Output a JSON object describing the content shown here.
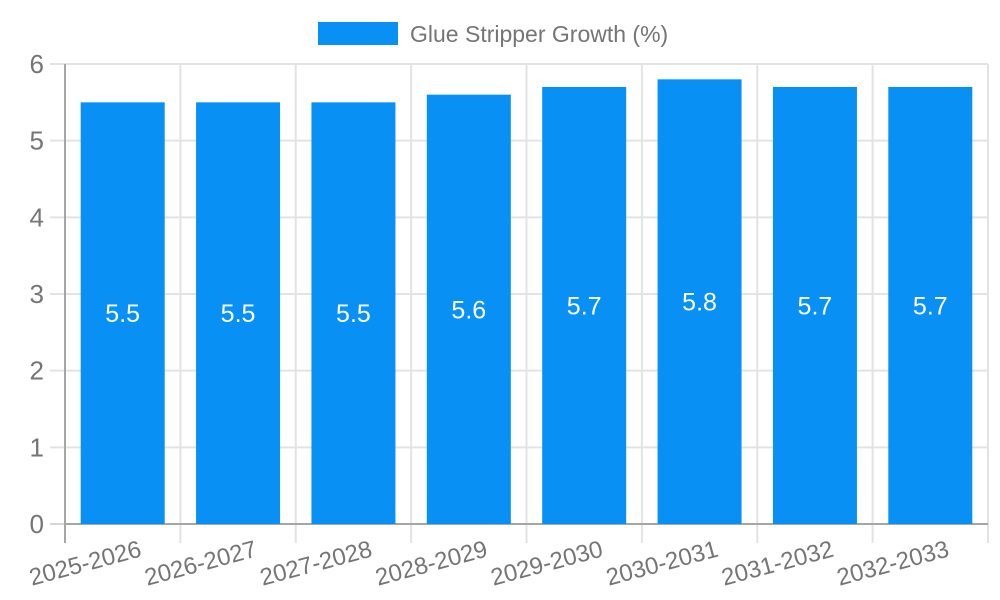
{
  "chart_data": {
    "type": "bar",
    "title": "",
    "legend_label": "Glue Stripper Growth (%)",
    "legend_position": "top-center",
    "categories": [
      "2025-2026",
      "2026-2027",
      "2027-2028",
      "2028-2029",
      "2029-2030",
      "2030-2031",
      "2031-2032",
      "2032-2033"
    ],
    "series": [
      {
        "name": "Glue Stripper Growth (%)",
        "values": [
          5.5,
          5.5,
          5.5,
          5.6,
          5.7,
          5.8,
          5.7,
          5.7
        ]
      }
    ],
    "xlabel": "",
    "ylabel": "",
    "ylim": [
      0,
      6
    ],
    "yticks": [
      0,
      1,
      2,
      3,
      4,
      5,
      6
    ],
    "grid": true,
    "x_label_rotation_deg": -15,
    "data_labels_shown": true,
    "colors": {
      "bar": "#0990f4",
      "grid": "#e3e3e3",
      "axis": "#a6a6a6",
      "tick": "#d6d6d6",
      "tick_label": "#757575",
      "legend_label": "#757575",
      "data_label": "#ffffff"
    }
  }
}
